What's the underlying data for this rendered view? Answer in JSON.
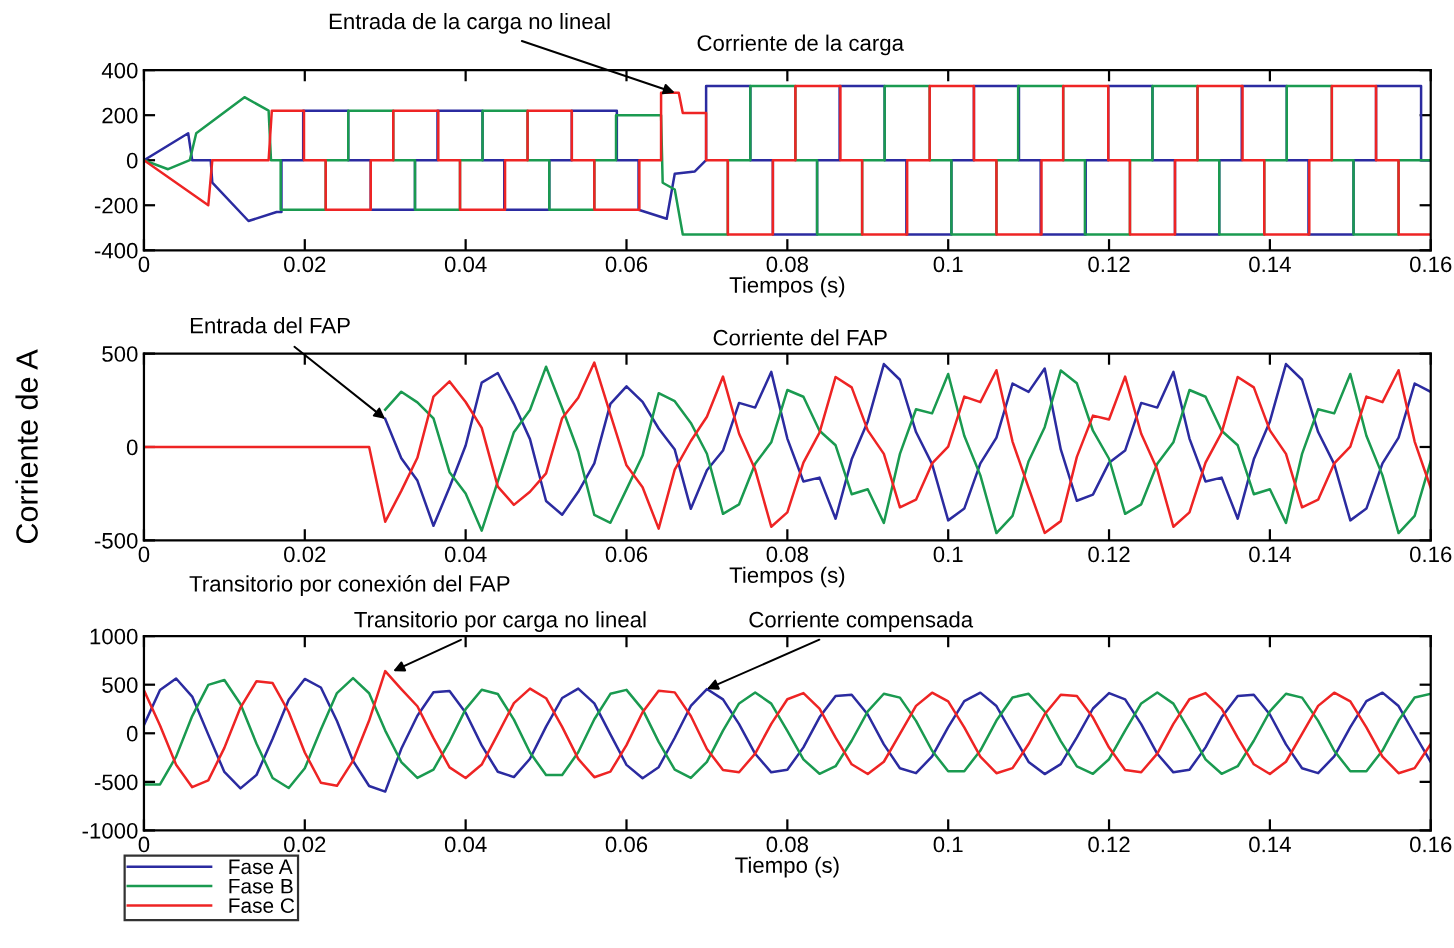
{
  "chart_data": [
    {
      "type": "line",
      "xlabel": "Tiempos (s)",
      "xlim": [
        0,
        0.16
      ],
      "xticks": [
        0,
        0.02,
        0.04,
        0.06,
        0.08,
        0.1,
        0.12,
        0.14,
        0.16
      ],
      "ylim": [
        -400,
        400
      ],
      "yticks": [
        -400,
        -200,
        0,
        200,
        400
      ],
      "grid": false,
      "legend": false,
      "annotations": [
        {
          "text": "Entrada de la carga no lineal",
          "x": 0.066,
          "y": 300
        },
        "Corriente de la carga"
      ],
      "series": [
        {
          "color": "#2b2ba0",
          "x": [
            0,
            0.0055,
            0.006,
            0.0083,
            0.0085,
            0.013,
            0.0165,
            0.0171,
            0.0171,
            0.0198,
            0.0198,
            0.0254,
            0.0254,
            0.0282,
            0.0282,
            0.0337,
            0.0337,
            0.0365,
            0.0365,
            0.0421,
            0.0421,
            0.0448,
            0.0448,
            0.0504,
            0.0504,
            0.0532,
            0.0532,
            0.0588,
            0.0588,
            0.0615,
            0.0615,
            0.065,
            0.066,
            0.0685,
            0.0699,
            0.0699,
            0.0754,
            0.0754,
            0.0782,
            0.0782,
            0.0837,
            0.0837,
            0.0865,
            0.0865,
            0.0921,
            0.0921,
            0.0948,
            0.0948,
            0.1004,
            0.1004,
            0.1032,
            0.1032,
            0.1088,
            0.1088,
            0.1115,
            0.1115,
            0.1171,
            0.1171,
            0.1199,
            0.1199,
            0.1254,
            0.1254,
            0.1282,
            0.1282,
            0.1337,
            0.1337,
            0.1365,
            0.1365,
            0.1421,
            0.1421,
            0.1448,
            0.1448,
            0.1504,
            0.1504,
            0.1532,
            0.1532,
            0.1588,
            0.1588,
            0.16
          ],
          "values": [
            0,
            120,
            0,
            0,
            -100,
            -270,
            -230,
            -230,
            0,
            0,
            220,
            220,
            0,
            0,
            -220,
            -220,
            0,
            0,
            220,
            220,
            0,
            0,
            -220,
            -220,
            0,
            0,
            220,
            220,
            0,
            0,
            -220,
            -260,
            -60,
            -50,
            0,
            330,
            330,
            0,
            0,
            -330,
            -330,
            0,
            0,
            330,
            330,
            0,
            0,
            -330,
            -330,
            0,
            0,
            330,
            330,
            0,
            0,
            -330,
            -330,
            0,
            0,
            330,
            330,
            0,
            0,
            -330,
            -330,
            0,
            0,
            330,
            330,
            0,
            0,
            -330,
            -330,
            0,
            0,
            330,
            330,
            0,
            0
          ]
        },
        {
          "color": "#1a9a50",
          "x": [
            0,
            0.003,
            0.0057,
            0.0065,
            0.0125,
            0.0155,
            0.0158,
            0.017,
            0.017,
            0.0226,
            0.0226,
            0.0254,
            0.0254,
            0.031,
            0.031,
            0.0337,
            0.0337,
            0.0393,
            0.0393,
            0.0421,
            0.0421,
            0.0477,
            0.0477,
            0.0504,
            0.0504,
            0.056,
            0.056,
            0.0587,
            0.0587,
            0.0643,
            0.0645,
            0.066,
            0.067,
            0.0726,
            0.0726,
            0.0754,
            0.0754,
            0.081,
            0.081,
            0.0837,
            0.0837,
            0.0893,
            0.0893,
            0.0921,
            0.0921,
            0.0977,
            0.0977,
            0.1004,
            0.1004,
            0.106,
            0.106,
            0.1087,
            0.1087,
            0.1143,
            0.1143,
            0.117,
            0.117,
            0.1226,
            0.1226,
            0.1254,
            0.1254,
            0.131,
            0.131,
            0.1337,
            0.1337,
            0.1393,
            0.1393,
            0.1421,
            0.1421,
            0.1477,
            0.1477,
            0.1504,
            0.1504,
            0.156,
            0.156,
            0.16
          ],
          "values": [
            0,
            -40,
            0,
            120,
            280,
            220,
            0,
            0,
            -220,
            -220,
            0,
            0,
            220,
            220,
            0,
            0,
            -220,
            -220,
            0,
            0,
            220,
            220,
            0,
            0,
            -220,
            -220,
            0,
            0,
            200,
            200,
            -100,
            -130,
            -330,
            -330,
            0,
            0,
            330,
            330,
            0,
            0,
            -330,
            -330,
            0,
            0,
            330,
            330,
            0,
            0,
            -330,
            -330,
            0,
            0,
            330,
            330,
            0,
            0,
            -330,
            -330,
            0,
            0,
            330,
            330,
            0,
            0,
            -330,
            -330,
            0,
            0,
            330,
            330,
            0,
            0,
            -330,
            -330,
            0,
            0
          ]
        },
        {
          "color": "#ee2424",
          "x": [
            0,
            0.008,
            0.0085,
            0.0155,
            0.0159,
            0.0199,
            0.0199,
            0.0226,
            0.0226,
            0.0282,
            0.0282,
            0.031,
            0.031,
            0.0366,
            0.0366,
            0.0393,
            0.0393,
            0.0449,
            0.0449,
            0.0477,
            0.0477,
            0.0532,
            0.0532,
            0.056,
            0.056,
            0.0616,
            0.0616,
            0.0643,
            0.0643,
            0.0665,
            0.067,
            0.0699,
            0.0699,
            0.0726,
            0.0726,
            0.0782,
            0.0782,
            0.081,
            0.081,
            0.0866,
            0.0866,
            0.0893,
            0.0893,
            0.0949,
            0.0949,
            0.0977,
            0.0977,
            0.1032,
            0.1032,
            0.106,
            0.106,
            0.1116,
            0.1116,
            0.1143,
            0.1143,
            0.1199,
            0.1199,
            0.1226,
            0.1226,
            0.1282,
            0.1282,
            0.131,
            0.131,
            0.1366,
            0.1366,
            0.1393,
            0.1393,
            0.1449,
            0.1449,
            0.1477,
            0.1477,
            0.1532,
            0.1532,
            0.156,
            0.156,
            0.16
          ],
          "values": [
            0,
            -200,
            0,
            0,
            220,
            220,
            0,
            0,
            -220,
            -220,
            0,
            0,
            220,
            220,
            0,
            0,
            -220,
            -220,
            0,
            0,
            220,
            220,
            0,
            0,
            -220,
            -220,
            0,
            0,
            300,
            300,
            210,
            210,
            0,
            0,
            -330,
            -330,
            0,
            0,
            330,
            330,
            0,
            0,
            -330,
            -330,
            0,
            0,
            330,
            330,
            0,
            0,
            -330,
            -330,
            0,
            0,
            330,
            330,
            0,
            0,
            -330,
            -330,
            0,
            0,
            330,
            330,
            0,
            0,
            -330,
            -330,
            0,
            0,
            330,
            330,
            0,
            0,
            -330,
            -330
          ]
        }
      ]
    },
    {
      "type": "line",
      "xlabel": "Tiempos (s)",
      "ylabel": "Corriente de A",
      "xlim": [
        0,
        0.16
      ],
      "xticks": [
        0,
        0.02,
        0.04,
        0.06,
        0.08,
        0.1,
        0.12,
        0.14,
        0.16
      ],
      "ylim": [
        -500,
        500
      ],
      "yticks": [
        -500,
        0,
        500
      ],
      "grid": false,
      "legend": false,
      "annotations": [
        {
          "text": "Entrada del FAP",
          "x": 0.03,
          "y": 150
        },
        "Corriente del FAP"
      ],
      "x": [
        0,
        0.002,
        0.004,
        0.006,
        0.008,
        0.01,
        0.012,
        0.014,
        0.016,
        0.018,
        0.02,
        0.022,
        0.024,
        0.026,
        0.028,
        0.03,
        0.032,
        0.034,
        0.036,
        0.038,
        0.04,
        0.042,
        0.044,
        0.046,
        0.048,
        0.05,
        0.052,
        0.054,
        0.056,
        0.058,
        0.06,
        0.062,
        0.064,
        0.066,
        0.068,
        0.07,
        0.072,
        0.074,
        0.076,
        0.078,
        0.08,
        0.082,
        0.084,
        0.086,
        0.088,
        0.09,
        0.092,
        0.094,
        0.096,
        0.098,
        0.1,
        0.102,
        0.104,
        0.106,
        0.108,
        0.11,
        0.112,
        0.114,
        0.116,
        0.118,
        0.12,
        0.122,
        0.124,
        0.126,
        0.128,
        0.13,
        0.132,
        0.134,
        0.136,
        0.138,
        0.14,
        0.142,
        0.144,
        0.146,
        0.148,
        0.15,
        0.152,
        0.154,
        0.156,
        0.158,
        0.16
      ],
      "series": [
        {
          "color": "#2b2ba0",
          "values": [
            null,
            null,
            null,
            null,
            null,
            null,
            null,
            null,
            null,
            null,
            null,
            null,
            null,
            null,
            null,
            150,
            -60,
            -180,
            -422,
            -216,
            8,
            345,
            396,
            231,
            42,
            -289,
            -363,
            -240,
            -88,
            231,
            325,
            242,
            99,
            -14,
            -331,
            -125,
            -19,
            236,
            211,
            402,
            45,
            -185,
            -164,
            -384,
            -66,
            137,
            444,
            360,
            80,
            -92,
            -393,
            -330,
            -88,
            50,
            340,
            295,
            420,
            -13,
            -288,
            -255,
            -84,
            -19,
            236,
            211,
            402,
            45,
            -185,
            -164,
            -384,
            -66,
            137,
            444,
            360,
            80,
            -92,
            -393,
            -330,
            -88,
            50,
            340,
            295
          ]
        },
        {
          "color": "#1a9a50",
          "values": [
            null,
            null,
            null,
            null,
            null,
            null,
            null,
            null,
            null,
            null,
            null,
            null,
            null,
            null,
            null,
            200,
            296,
            239,
            153,
            -135,
            -249,
            -448,
            -184,
            79,
            198,
            430,
            209,
            -24,
            -364,
            -406,
            -227,
            -46,
            288,
            245,
            129,
            -36,
            -358,
            -307,
            -90,
            25,
            305,
            269,
            87,
            9,
            -253,
            -226,
            -407,
            -37,
            202,
            180,
            391,
            60,
            -152,
            -461,
            -369,
            -76,
            106,
            410,
            341,
            87,
            -63,
            -358,
            -307,
            -90,
            25,
            305,
            269,
            87,
            9,
            -253,
            -226,
            -407,
            -37,
            202,
            180,
            391,
            60,
            -152,
            -461,
            -369,
            -76
          ]
        },
        {
          "color": "#ee2424",
          "values": [
            0,
            0,
            0,
            0,
            0,
            0,
            0,
            0,
            0,
            0,
            0,
            0,
            0,
            0,
            0,
            -400,
            -235,
            -58,
            270,
            351,
            241,
            102,
            -212,
            -310,
            -240,
            -141,
            154,
            264,
            452,
            175,
            -98,
            -216,
            -437,
            -121,
            32,
            162,
            377,
            71,
            -121,
            -427,
            -350,
            -84,
            77,
            375,
            319,
            89,
            -37,
            -323,
            -282,
            -88,
            2,
            270,
            240,
            411,
            29,
            -219,
            -460,
            -397,
            -53,
            168,
            147,
            377,
            71,
            -121,
            -427,
            -350,
            -84,
            77,
            375,
            319,
            89,
            -37,
            -323,
            -282,
            -88,
            2,
            270,
            240,
            411,
            29,
            -219
          ]
        }
      ]
    },
    {
      "type": "line",
      "xlabel": "Tiempo (s)",
      "xlim": [
        0,
        0.16
      ],
      "xticks": [
        0,
        0.02,
        0.04,
        0.06,
        0.08,
        0.1,
        0.12,
        0.14,
        0.16
      ],
      "ylim": [
        -1000,
        1000
      ],
      "yticks": [
        -1000,
        -500,
        0,
        500,
        1000
      ],
      "grid": false,
      "legend": "bottom left",
      "annotations": [
        "Transitorio por conexión del FAP",
        {
          "text": "Transitorio por carga no lineal",
          "x": 0.031,
          "y": 640
        },
        {
          "text": "Corriente compensada",
          "x": 0.07,
          "y": 455
        }
      ],
      "x": [
        0,
        0.002,
        0.004,
        0.006,
        0.008,
        0.01,
        0.012,
        0.014,
        0.016,
        0.018,
        0.02,
        0.022,
        0.024,
        0.026,
        0.028,
        0.03,
        0.032,
        0.034,
        0.036,
        0.038,
        0.04,
        0.042,
        0.044,
        0.046,
        0.048,
        0.05,
        0.052,
        0.054,
        0.056,
        0.058,
        0.06,
        0.062,
        0.064,
        0.066,
        0.068,
        0.07,
        0.072,
        0.074,
        0.076,
        0.078,
        0.08,
        0.082,
        0.084,
        0.086,
        0.088,
        0.09,
        0.092,
        0.094,
        0.096,
        0.098,
        0.1,
        0.102,
        0.104,
        0.106,
        0.108,
        0.11,
        0.112,
        0.114,
        0.116,
        0.118,
        0.12,
        0.122,
        0.124,
        0.126,
        0.128,
        0.13,
        0.132,
        0.134,
        0.136,
        0.138,
        0.14,
        0.142,
        0.144,
        0.146,
        0.148,
        0.15,
        0.152,
        0.154,
        0.156,
        0.158,
        0.16
      ],
      "series": [
        {
          "name": "Fase A",
          "color": "#2b2ba0",
          "values": [
            85,
            446,
            564,
            378,
            -14,
            -398,
            -567,
            -428,
            -57,
            344,
            559,
            471,
            127,
            -285,
            -543,
            -600,
            -160,
            180,
            422,
            436,
            212,
            -125,
            -396,
            -451,
            -262,
            69,
            363,
            460,
            308,
            -11,
            -325,
            -462,
            -349,
            -46,
            281,
            455,
            349,
            94,
            -211,
            -402,
            -375,
            -145,
            164,
            384,
            396,
            193,
            -114,
            -360,
            -410,
            -238,
            63,
            330,
            418,
            280,
            -10,
            -295,
            -420,
            -317,
            -42,
            255,
            414,
            349,
            94,
            -211,
            -402,
            -375,
            -145,
            164,
            384,
            396,
            193,
            -114,
            -360,
            -410,
            -238,
            63,
            330,
            418,
            280,
            -10,
            -295
          ]
        },
        {
          "name": "Fase B",
          "color": "#1a9a50",
          "values": [
            -528,
            -527,
            -240,
            177,
            498,
            548,
            302,
            -108,
            -460,
            -563,
            -360,
            38,
            414,
            567,
            412,
            28,
            -296,
            -459,
            -373,
            -85,
            249,
            448,
            404,
            141,
            -198,
            -430,
            -429,
            -196,
            144,
            406,
            447,
            246,
            -88,
            -375,
            -459,
            -294,
            28,
            307,
            420,
            305,
            25,
            -269,
            -417,
            -339,
            -77,
            226,
            407,
            367,
            128,
            -180,
            -391,
            -390,
            -178,
            131,
            369,
            406,
            224,
            -80,
            -341,
            -417,
            -267,
            28,
            307,
            420,
            305,
            25,
            -269,
            -417,
            -339,
            -77,
            226,
            407,
            367,
            128,
            -180,
            -391,
            -390,
            -178,
            131,
            369,
            406
          ]
        },
        {
          "name": "Fase C",
          "color": "#ee2424",
          "values": [
            443,
            81,
            -324,
            -555,
            -485,
            -150,
            265,
            536,
            517,
            219,
            -198,
            -509,
            -541,
            -282,
            131,
            640,
            455,
            278,
            -50,
            -351,
            -461,
            -322,
            -8,
            310,
            460,
            361,
            66,
            -264,
            -452,
            -395,
            -122,
            216,
            437,
            421,
            178,
            -162,
            -377,
            -401,
            -209,
            97,
            350,
            414,
            253,
            -45,
            -319,
            -419,
            -293,
            -7,
            282,
            418,
            328,
            60,
            -240,
            -411,
            -359,
            -111,
            196,
            397,
            383,
            162,
            -147,
            -377,
            -401,
            -209,
            97,
            350,
            414,
            253,
            -45,
            -319,
            -419,
            -293,
            -7,
            282,
            418,
            328,
            60,
            -240,
            -411,
            -359,
            -111
          ]
        }
      ]
    }
  ]
}
